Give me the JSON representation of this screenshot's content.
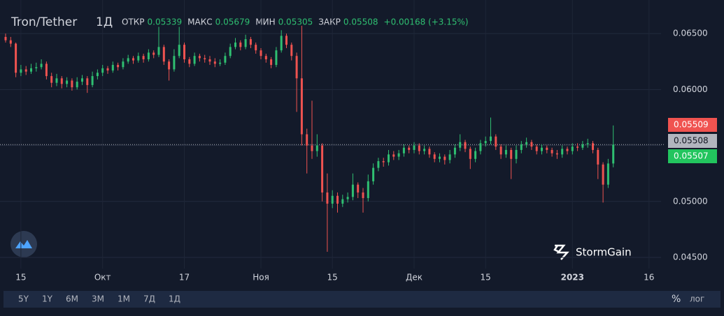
{
  "chart_data": {
    "type": "candlestick",
    "title": "Tron/Tether",
    "interval": "1Д",
    "labels": {
      "open": "ОТКР",
      "high": "МАКС",
      "low": "МИН",
      "close": "ЗАКР"
    },
    "change": "+0.00168 (+3.15%)",
    "up_color": "#2fbf71",
    "down_color": "#ef5350",
    "categories": [
      null,
      null,
      null,
      "15",
      null,
      null,
      null,
      null,
      null,
      null,
      null,
      null,
      null,
      null,
      null,
      null,
      null,
      null,
      null,
      "Окт",
      null,
      null,
      null,
      null,
      null,
      null,
      null,
      null,
      null,
      null,
      null,
      null,
      null,
      null,
      null,
      "17",
      null,
      null,
      null,
      null,
      null,
      null,
      null,
      null,
      null,
      null,
      null,
      null,
      null,
      null,
      "Ноя",
      null,
      null,
      null,
      null,
      null,
      null,
      null,
      null,
      null,
      null,
      null,
      null,
      null,
      "15",
      null,
      null,
      null,
      null,
      null,
      null,
      null,
      null,
      null,
      null,
      null,
      null,
      null,
      null,
      null,
      "Дек",
      null,
      null,
      null,
      null,
      null,
      null,
      null,
      null,
      null,
      null,
      null,
      null,
      null,
      "15",
      null,
      null,
      null,
      null,
      null,
      null,
      null,
      null,
      null,
      null,
      null,
      null,
      null,
      null,
      null,
      null,
      "2023",
      null,
      null,
      null,
      null,
      null,
      null,
      null,
      null,
      null,
      null,
      null,
      null,
      null,
      null,
      "16"
    ],
    "open": [
      0.0647,
      0.0644,
      0.0641,
      0.0615,
      0.0618,
      0.0616,
      0.0619,
      0.062,
      0.0623,
      0.0612,
      0.0606,
      0.061,
      0.0605,
      0.0608,
      0.0602,
      0.0607,
      0.061,
      0.0604,
      0.0612,
      0.0615,
      0.0619,
      0.0617,
      0.0622,
      0.062,
      0.0625,
      0.0628,
      0.0626,
      0.063,
      0.0627,
      0.0633,
      0.0631,
      0.0638,
      0.0625,
      0.0618,
      0.063,
      0.064,
      0.0627,
      0.0623,
      0.063,
      0.0628,
      0.0627,
      0.0625,
      0.0623,
      0.0624,
      0.063,
      0.0638,
      0.0642,
      0.0638,
      0.0645,
      0.064,
      0.0635,
      0.063,
      0.0627,
      0.0622,
      0.0635,
      0.0648,
      0.064,
      0.063,
      0.061,
      0.056,
      0.055,
      0.0545,
      0.055,
      0.0508,
      0.0498,
      0.0505,
      0.0498,
      0.0502,
      0.0504,
      0.0515,
      0.0508,
      0.0503,
      0.0518,
      0.053,
      0.0536,
      0.0535,
      0.0542,
      0.054,
      0.0543,
      0.0548,
      0.0546,
      0.055,
      0.0545,
      0.0547,
      0.0542,
      0.0538,
      0.054,
      0.0537,
      0.0542,
      0.0548,
      0.0553,
      0.0547,
      0.0538,
      0.0545,
      0.0552,
      0.0554,
      0.0558,
      0.0549,
      0.0542,
      0.0546,
      0.0538,
      0.0546,
      0.0551,
      0.0553,
      0.0549,
      0.0545,
      0.0548,
      0.0546,
      0.0543,
      0.0542,
      0.0547,
      0.0545,
      0.0549,
      0.0548,
      0.0551,
      0.0552,
      0.0546,
      0.0533,
      0.0515,
      0.05339,
      null,
      null,
      null,
      null,
      null,
      null,
      null
    ],
    "high": [
      0.065,
      0.0647,
      0.0642,
      0.0622,
      0.0621,
      0.0623,
      0.0624,
      0.0627,
      0.0625,
      0.0615,
      0.0614,
      0.0612,
      0.0611,
      0.061,
      0.0611,
      0.0613,
      0.0612,
      0.0616,
      0.0618,
      0.0622,
      0.0621,
      0.0625,
      0.0624,
      0.0628,
      0.0631,
      0.063,
      0.0633,
      0.0632,
      0.0636,
      0.0635,
      0.0656,
      0.064,
      0.0627,
      0.0636,
      0.0656,
      0.0642,
      0.0629,
      0.0633,
      0.0632,
      0.0631,
      0.063,
      0.0628,
      0.0627,
      0.0633,
      0.0641,
      0.0646,
      0.0644,
      0.0649,
      0.0647,
      0.0642,
      0.0637,
      0.0632,
      0.0629,
      0.0638,
      0.0653,
      0.065,
      0.0642,
      0.0633,
      0.0657,
      0.0565,
      0.059,
      0.056,
      0.0552,
      0.0525,
      0.051,
      0.0508,
      0.0506,
      0.0508,
      0.0525,
      0.0517,
      0.0512,
      0.0524,
      0.0534,
      0.0539,
      0.0539,
      0.0546,
      0.0545,
      0.0546,
      0.0551,
      0.055,
      0.0553,
      0.0552,
      0.055,
      0.0549,
      0.0544,
      0.0543,
      0.0542,
      0.0546,
      0.0551,
      0.056,
      0.0555,
      0.0549,
      0.0548,
      0.0555,
      0.0558,
      0.0575,
      0.056,
      0.0551,
      0.055,
      0.0548,
      0.055,
      0.0554,
      0.0557,
      0.0555,
      0.0551,
      0.0551,
      0.055,
      0.0548,
      0.0546,
      0.055,
      0.0549,
      0.0552,
      0.0552,
      0.0554,
      0.0556,
      0.0554,
      0.0548,
      0.0535,
      0.0538,
      0.05679,
      null,
      null,
      null,
      null,
      null,
      null,
      null
    ],
    "low": [
      0.0642,
      0.0638,
      0.0611,
      0.0612,
      0.0613,
      0.0614,
      0.0616,
      0.0618,
      0.0609,
      0.0602,
      0.0603,
      0.0601,
      0.0602,
      0.0599,
      0.06,
      0.0604,
      0.0597,
      0.0602,
      0.0609,
      0.0612,
      0.0614,
      0.0615,
      0.0617,
      0.0618,
      0.0623,
      0.0623,
      0.0624,
      0.0624,
      0.0625,
      0.0628,
      0.0629,
      0.0622,
      0.0608,
      0.0616,
      0.0628,
      0.0624,
      0.062,
      0.0621,
      0.0625,
      0.0624,
      0.0622,
      0.062,
      0.0621,
      0.0622,
      0.0628,
      0.0636,
      0.0635,
      0.0636,
      0.0637,
      0.0632,
      0.0627,
      0.0624,
      0.0619,
      0.062,
      0.0633,
      0.0637,
      0.0626,
      0.058,
      0.055,
      0.0525,
      0.0538,
      0.054,
      0.05,
      0.0455,
      0.0494,
      0.049,
      0.0495,
      0.0499,
      0.0501,
      0.0503,
      0.049,
      0.05,
      0.0515,
      0.0527,
      0.0531,
      0.0532,
      0.0537,
      0.0537,
      0.054,
      0.0543,
      0.0543,
      0.0542,
      0.0542,
      0.0539,
      0.0535,
      0.0535,
      0.0533,
      0.0534,
      0.0539,
      0.0545,
      0.0544,
      0.0529,
      0.0535,
      0.0542,
      0.0549,
      0.0551,
      0.0546,
      0.0538,
      0.0539,
      0.052,
      0.0534,
      0.0543,
      0.0548,
      0.0546,
      0.0542,
      0.0542,
      0.0543,
      0.054,
      0.0538,
      0.0539,
      0.0542,
      0.0542,
      0.0545,
      0.0546,
      0.0548,
      0.0543,
      0.052,
      0.0499,
      0.0512,
      0.05305,
      null,
      null,
      null,
      null,
      null,
      null,
      null
    ],
    "close": [
      0.0644,
      0.0641,
      0.0615,
      0.0618,
      0.0616,
      0.0619,
      0.062,
      0.0623,
      0.0612,
      0.0606,
      0.061,
      0.0605,
      0.0608,
      0.0602,
      0.0607,
      0.061,
      0.0604,
      0.0612,
      0.0615,
      0.0619,
      0.0617,
      0.0622,
      0.062,
      0.0625,
      0.0628,
      0.0626,
      0.063,
      0.0627,
      0.0633,
      0.0631,
      0.0638,
      0.0625,
      0.0618,
      0.063,
      0.064,
      0.0627,
      0.0623,
      0.063,
      0.0628,
      0.0627,
      0.0625,
      0.0623,
      0.0624,
      0.063,
      0.0638,
      0.0642,
      0.0638,
      0.0645,
      0.064,
      0.0635,
      0.063,
      0.0627,
      0.0622,
      0.0635,
      0.0648,
      0.064,
      0.063,
      0.061,
      0.056,
      0.055,
      0.0545,
      0.055,
      0.0508,
      0.0498,
      0.0505,
      0.0498,
      0.0502,
      0.0504,
      0.0515,
      0.0508,
      0.0503,
      0.0518,
      0.053,
      0.0536,
      0.0535,
      0.0542,
      0.054,
      0.0543,
      0.0548,
      0.0546,
      0.055,
      0.0545,
      0.0547,
      0.0542,
      0.0538,
      0.054,
      0.0537,
      0.0542,
      0.0548,
      0.0553,
      0.0547,
      0.0538,
      0.0545,
      0.0552,
      0.0554,
      0.0558,
      0.0549,
      0.0542,
      0.0546,
      0.0538,
      0.0546,
      0.0551,
      0.0553,
      0.0549,
      0.0545,
      0.0548,
      0.0546,
      0.0543,
      0.0542,
      0.0547,
      0.0545,
      0.0549,
      0.0548,
      0.0551,
      0.0552,
      0.0546,
      0.0533,
      0.0515,
      0.05339,
      0.05508,
      null,
      null,
      null,
      null,
      null,
      null,
      null
    ],
    "ylim": [
      0.044,
      0.068
    ],
    "yticks": [
      {
        "value": 0.045,
        "label": "0.04500"
      },
      {
        "value": 0.05,
        "label": "0.05000"
      },
      {
        "value": 0.055,
        "label": "0.05500"
      },
      {
        "value": 0.06,
        "label": "0.06000"
      },
      {
        "value": 0.065,
        "label": "0.06500"
      }
    ],
    "price_lines": [
      {
        "value": 0.05509,
        "color": "#f05350"
      },
      {
        "value": 0.05508,
        "color": "#b2b5be"
      },
      {
        "value": 0.05507,
        "color": "#22c55e"
      }
    ],
    "grid": true
  },
  "logo": "StormGain",
  "toolbar": {
    "ranges": [
      "5Y",
      "1Y",
      "6M",
      "3M",
      "1M",
      "7Д",
      "1Д"
    ],
    "percent": "%",
    "log": "лог"
  }
}
